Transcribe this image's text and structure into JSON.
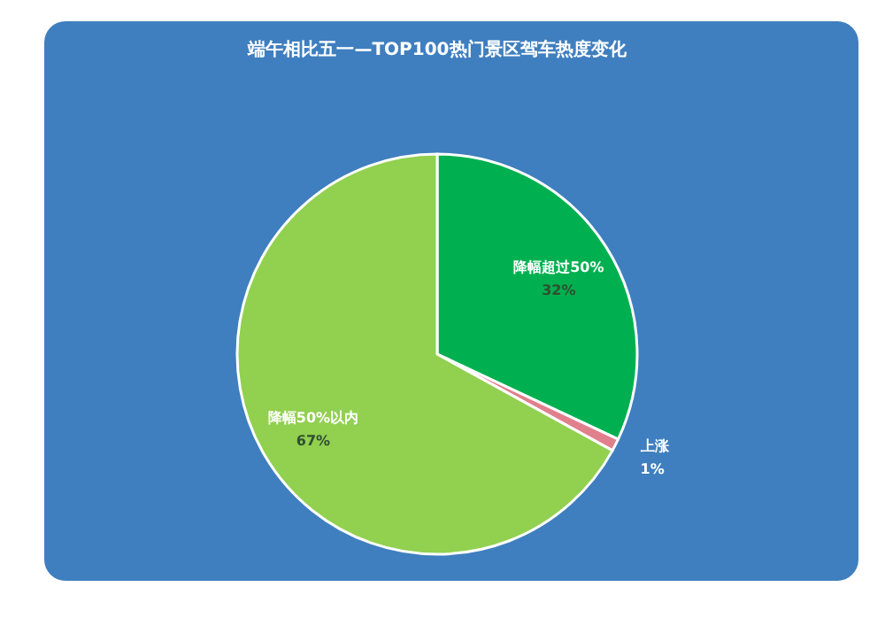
{
  "chart_data": {
    "type": "pie",
    "title": "端午相比五一—TOP100热门景区驾车热度变化",
    "categories": [
      "降幅超过50%",
      "上涨",
      "降幅50%以内"
    ],
    "values": [
      32,
      1,
      67
    ],
    "colors": [
      "#00b050",
      "#e0808c",
      "#92d050"
    ],
    "value_labels": [
      "32%",
      "1%",
      "67%"
    ]
  }
}
